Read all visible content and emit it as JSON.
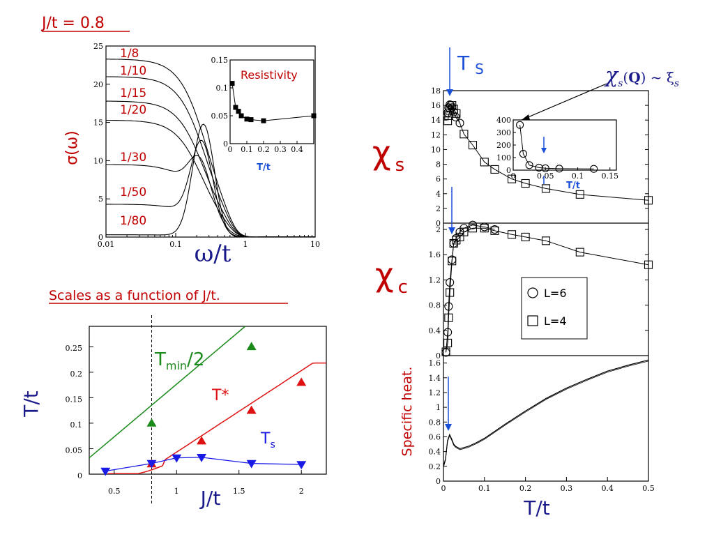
{
  "page": {
    "heading_jt": "J/t = 0.8",
    "heading_scales": "Scales as a function of J/t."
  },
  "chart_data": [
    {
      "id": "conductivity",
      "type": "line",
      "xlabel": "ω/t",
      "ylabel": "σ(ω)",
      "xscale": "log",
      "xlim": [
        0.01,
        10
      ],
      "ylim": [
        0,
        25
      ],
      "x_tick_labels": [
        "0.01",
        "0.1",
        "1",
        "10"
      ],
      "y_tick_labels": [
        "0",
        "5",
        "10",
        "15",
        "20",
        "25"
      ],
      "series": [
        {
          "name": "1/8",
          "sigma0": 23.3
        },
        {
          "name": "1/10",
          "sigma0": 21.0
        },
        {
          "name": "1/15",
          "sigma0": 17.8
        },
        {
          "name": "1/20",
          "sigma0": 15.3
        },
        {
          "name": "1/30",
          "sigma0": 9.5
        },
        {
          "name": "1/50",
          "sigma0": 4.3
        },
        {
          "name": "1/80",
          "sigma0": 0.3
        }
      ],
      "curve_color": "#000000",
      "label_color": "#c00000"
    },
    {
      "id": "resistivity_inset",
      "type": "line",
      "title": "Resistivity",
      "xlabel": "T/t",
      "xlim": [
        0,
        0.5
      ],
      "ylim": [
        0,
        0.15
      ],
      "x_tick_labels": [
        "0",
        "0.1",
        "0.2",
        "0.3",
        "0.4"
      ],
      "y_tick_labels": [
        "0",
        "0.05",
        "0.1",
        "0.15"
      ],
      "x": [
        0.0125,
        0.033,
        0.05,
        0.067,
        0.1,
        0.125,
        0.2,
        0.5
      ],
      "y": [
        0.108,
        0.065,
        0.058,
        0.05,
        0.044,
        0.043,
        0.041,
        0.05
      ]
    },
    {
      "id": "scales",
      "type": "line",
      "xlabel": "J/t",
      "ylabel": "T/t",
      "xlim": [
        0.3,
        2.2
      ],
      "ylim": [
        0,
        0.29
      ],
      "x_tick_labels": [
        "0.5",
        "1",
        "1.5",
        "2"
      ],
      "y_tick_labels": [
        "0",
        "0.05",
        "0.1",
        "0.15",
        "0.2",
        "0.25"
      ],
      "dashed_x": 0.8,
      "series": [
        {
          "name": "T<sub>min</sub>/2",
          "label": "Tmin/2",
          "color": "#1a8a1a",
          "marker": "triangle-up",
          "x": [
            0.8,
            1.6
          ],
          "y": [
            0.1,
            0.25
          ],
          "fit_x": [
            0.3,
            1.55
          ],
          "fit_y": [
            0.032,
            0.29
          ]
        },
        {
          "name": "T*",
          "label": "T*",
          "color": "#dd1111",
          "marker": "triangle-up",
          "x": [
            0.8,
            1.2,
            1.6,
            2.0
          ],
          "y": [
            0.02,
            0.065,
            0.125,
            0.18
          ]
        },
        {
          "name": "Ts",
          "label": "Ts",
          "color": "#1a1ae6",
          "marker": "triangle-down",
          "x": [
            0.43,
            0.8,
            1.0,
            1.2,
            1.6,
            2.0
          ],
          "y": [
            0.006,
            0.021,
            0.032,
            0.033,
            0.021,
            0.019
          ]
        }
      ]
    },
    {
      "id": "chi_s",
      "type": "line",
      "ylabel": "χs",
      "xlim": [
        0,
        0.5
      ],
      "ylim": [
        0,
        18
      ],
      "y_tick_labels": [
        "0",
        "2",
        "4",
        "6",
        "8",
        "10",
        "12",
        "14",
        "16",
        "18"
      ],
      "arrow_label": "T S",
      "series": [
        {
          "name": "L=6",
          "marker": "circle",
          "x": [
            0.0104,
            0.0125,
            0.0156,
            0.0179,
            0.0208,
            0.025,
            0.03,
            0.04
          ],
          "y": [
            15.0,
            15.7,
            16.1,
            16.0,
            15.7,
            15.1,
            14.4,
            13.6
          ]
        },
        {
          "name": "L=4",
          "marker": "square",
          "x": [
            0.0104,
            0.0125,
            0.0156,
            0.0208,
            0.025,
            0.0312,
            0.05,
            0.0714,
            0.1,
            0.125,
            0.1667,
            0.2,
            0.25,
            0.333,
            0.5
          ],
          "y": [
            13.9,
            14.6,
            15.3,
            16.0,
            15.5,
            14.9,
            12.1,
            10.6,
            8.3,
            7.3,
            6.0,
            5.4,
            4.7,
            3.9,
            3.1
          ]
        }
      ]
    },
    {
      "id": "chi_s_inset",
      "type": "scatter",
      "annotation": "χs(Q) ~ ξs",
      "xlabel": "T/t",
      "xlim": [
        0,
        0.16
      ],
      "ylim": [
        0,
        400
      ],
      "x_tick_labels": [
        "0",
        "0.05",
        "0.1",
        "0.15"
      ],
      "y_tick_labels": [
        "0",
        "100",
        "200",
        "300",
        "400"
      ],
      "x": [
        0.0104,
        0.0156,
        0.025,
        0.04,
        0.05,
        0.0714,
        0.125
      ],
      "y": [
        360,
        130,
        40,
        20,
        15,
        12,
        10
      ]
    },
    {
      "id": "chi_c",
      "type": "line",
      "ylabel": "χc",
      "xlim": [
        0,
        0.5
      ],
      "ylim": [
        0,
        2.1
      ],
      "y_tick_labels": [
        "0",
        "0.4",
        "0.8",
        "1.2",
        "1.6",
        "2"
      ],
      "legend": [
        "L=6",
        "L=4"
      ],
      "series": [
        {
          "name": "L=6",
          "marker": "circle",
          "x": [
            0.006,
            0.0104,
            0.0125,
            0.0156,
            0.0208,
            0.025,
            0.0312,
            0.04,
            0.05,
            0.0714,
            0.1,
            0.125
          ],
          "y": [
            0.05,
            0.37,
            0.78,
            1.16,
            1.52,
            1.78,
            1.86,
            1.96,
            2.02,
            2.07,
            2.04,
            2.0
          ]
        },
        {
          "name": "L=4",
          "marker": "square",
          "x": [
            0.006,
            0.0104,
            0.0125,
            0.0156,
            0.0208,
            0.025,
            0.0312,
            0.04,
            0.05,
            0.0714,
            0.1,
            0.125,
            0.1667,
            0.2,
            0.25,
            0.333,
            0.5
          ],
          "y": [
            0.06,
            0.2,
            0.6,
            1.0,
            1.5,
            1.78,
            1.83,
            1.88,
            1.96,
            2.02,
            2.02,
            1.98,
            1.92,
            1.88,
            1.82,
            1.64,
            1.44
          ]
        }
      ]
    },
    {
      "id": "specific_heat",
      "type": "line",
      "xlabel": "T/t",
      "ylabel": "Specific heat.",
      "xlim": [
        0,
        0.5
      ],
      "ylim": [
        0,
        1.7
      ],
      "x_tick_labels": [
        "0",
        "0.1",
        "0.2",
        "0.3",
        "0.4",
        "0.5"
      ],
      "y_tick_labels": [
        "0",
        "0.2",
        "0.4",
        "0.6",
        "0.8",
        "1",
        "1.2",
        "1.4",
        "1.6"
      ],
      "x": [
        0.0,
        0.005,
        0.01,
        0.015,
        0.02,
        0.025,
        0.03,
        0.04,
        0.06,
        0.08,
        0.1,
        0.15,
        0.2,
        0.25,
        0.3,
        0.35,
        0.4,
        0.45,
        0.5
      ],
      "y": [
        0.2,
        0.3,
        0.55,
        0.63,
        0.57,
        0.5,
        0.47,
        0.44,
        0.47,
        0.52,
        0.58,
        0.77,
        0.95,
        1.12,
        1.26,
        1.38,
        1.49,
        1.57,
        1.64
      ]
    }
  ]
}
